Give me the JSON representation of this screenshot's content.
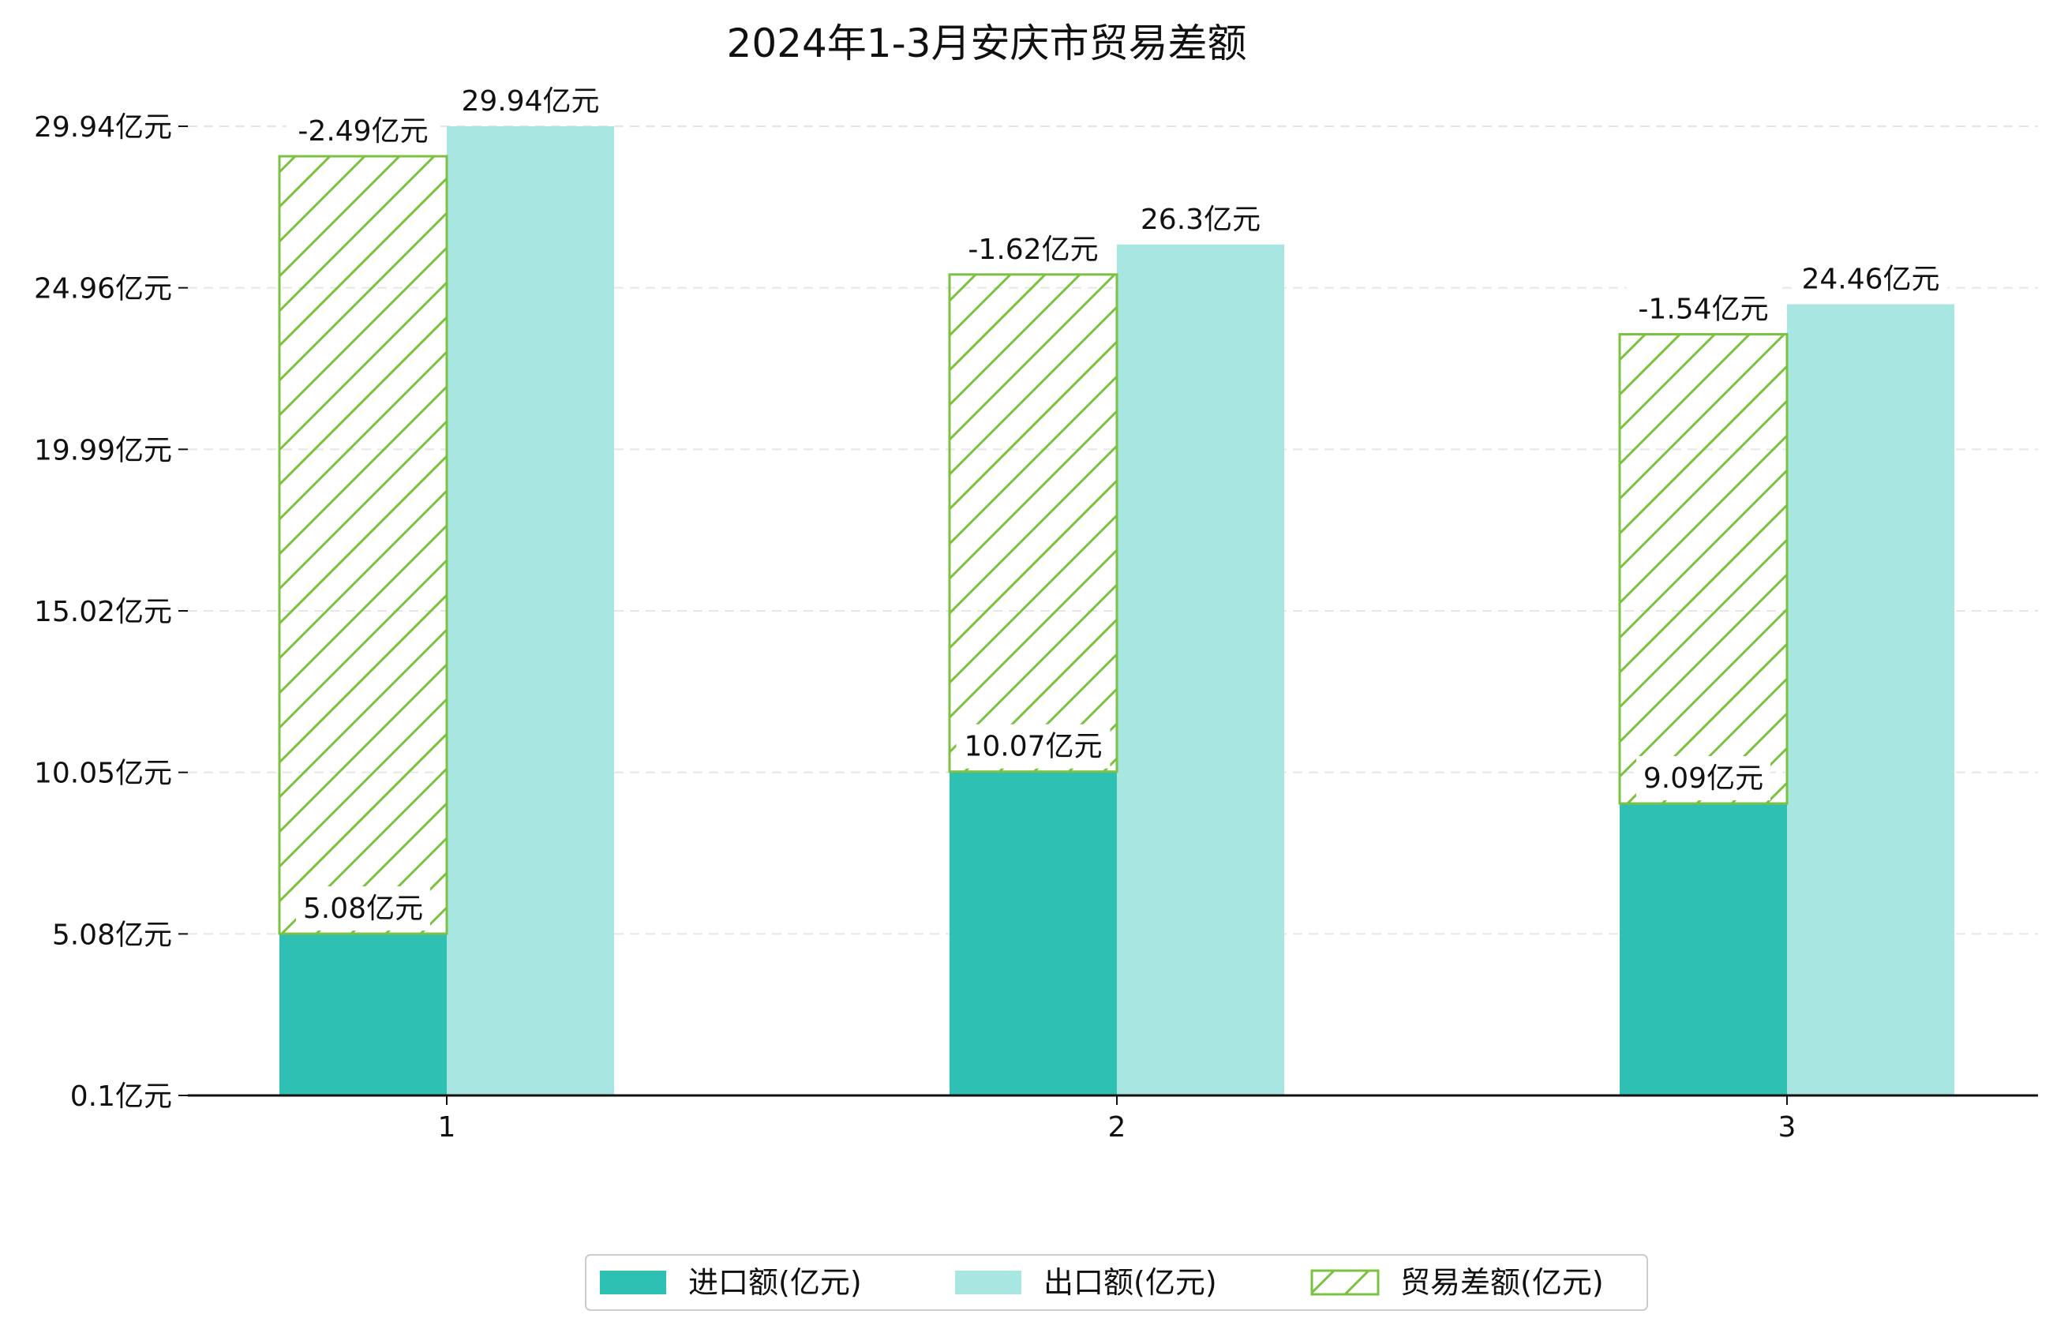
{
  "chart_data": {
    "type": "bar",
    "title": "2024年1-3月安庆市贸易差额",
    "categories": [
      "1",
      "2",
      "3"
    ],
    "y_ticks": [
      "0.1亿元",
      "5.08亿元",
      "10.05亿元",
      "15.02亿元",
      "19.99亿元",
      "24.96亿元",
      "29.94亿元"
    ],
    "ylim": [
      0.1,
      29.94
    ],
    "grid": "horizontal dashed",
    "legend_position": "bottom-center",
    "series": [
      {
        "name": "进口额(亿元)",
        "color": "#2ec0b3",
        "values": [
          5.08,
          10.07,
          9.09
        ],
        "labels": [
          "5.08亿元",
          "10.07亿元",
          "9.09亿元"
        ]
      },
      {
        "name": "出口额(亿元)",
        "color": "#a8e6e2",
        "values": [
          29.94,
          26.3,
          24.46
        ],
        "labels": [
          "29.94亿元",
          "26.3亿元",
          "24.46亿元"
        ]
      },
      {
        "name": "贸易差额(亿元)",
        "color": "#7cc142",
        "pattern": "hatched",
        "values": [
          -2.49,
          -1.62,
          -1.54
        ],
        "labels": [
          "-2.49亿元",
          "-1.62亿元",
          "-1.54亿元"
        ]
      }
    ]
  }
}
